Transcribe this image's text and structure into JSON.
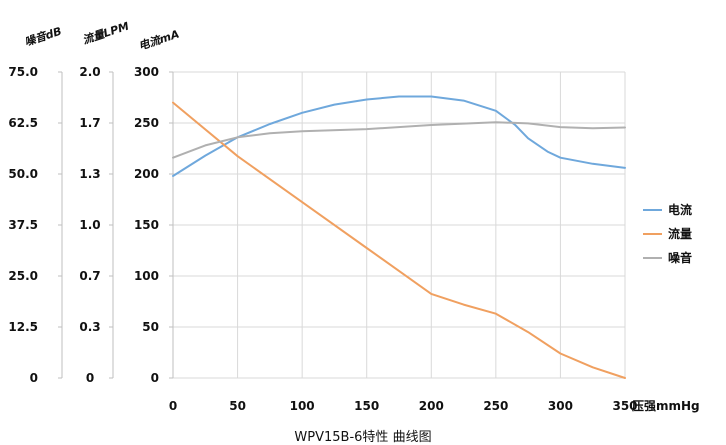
{
  "chart_data": {
    "type": "line",
    "title": "WPV15B-6特性 曲线图",
    "xlabel": "压强mmHg",
    "xlim": [
      0,
      350
    ],
    "x_ticks": [
      "0",
      "50",
      "100",
      "150",
      "200",
      "250",
      "300",
      "350"
    ],
    "axes": [
      {
        "title": "噪音dB",
        "ticks": [
          "75.0",
          "62.5",
          "50.0",
          "37.5",
          "25.0",
          "12.5",
          "0"
        ]
      },
      {
        "title": "流量LPM",
        "ticks": [
          "2.0",
          "1.7",
          "1.3",
          "1.0",
          "0.7",
          "0.3",
          "0"
        ]
      },
      {
        "title": "电流mA",
        "ticks": [
          "300",
          "250",
          "200",
          "150",
          "100",
          "50",
          "0"
        ]
      }
    ],
    "ylim": [
      0,
      300
    ],
    "grid": true,
    "legend_position": "right",
    "series": [
      {
        "name": "电流",
        "unit_axis": "mA",
        "color": "#6fa8dc",
        "x": [
          0,
          25,
          50,
          75,
          100,
          125,
          150,
          175,
          200,
          225,
          250,
          265,
          275,
          290,
          300,
          325,
          350
        ],
        "y": [
          198,
          218,
          236,
          249,
          260,
          268,
          273,
          276,
          276,
          272,
          262,
          248,
          235,
          222,
          216,
          210,
          206
        ]
      },
      {
        "name": "流量",
        "unit_axis": "LPM",
        "color": "#f0a060",
        "x": [
          0,
          50,
          100,
          150,
          175,
          200,
          225,
          250,
          275,
          300,
          325,
          350
        ],
        "y": [
          1.8,
          1.45,
          1.15,
          0.85,
          0.7,
          0.55,
          0.48,
          0.42,
          0.3,
          0.16,
          0.07,
          0.0
        ]
      },
      {
        "name": "噪音",
        "unit_axis": "dB",
        "color": "#b0b0b0",
        "x": [
          0,
          25,
          50,
          75,
          100,
          150,
          200,
          250,
          275,
          300,
          325,
          350
        ],
        "y": [
          54,
          57,
          59,
          60,
          60.5,
          61,
          62,
          62.7,
          62.4,
          61.5,
          61.2,
          61.4
        ]
      }
    ]
  }
}
